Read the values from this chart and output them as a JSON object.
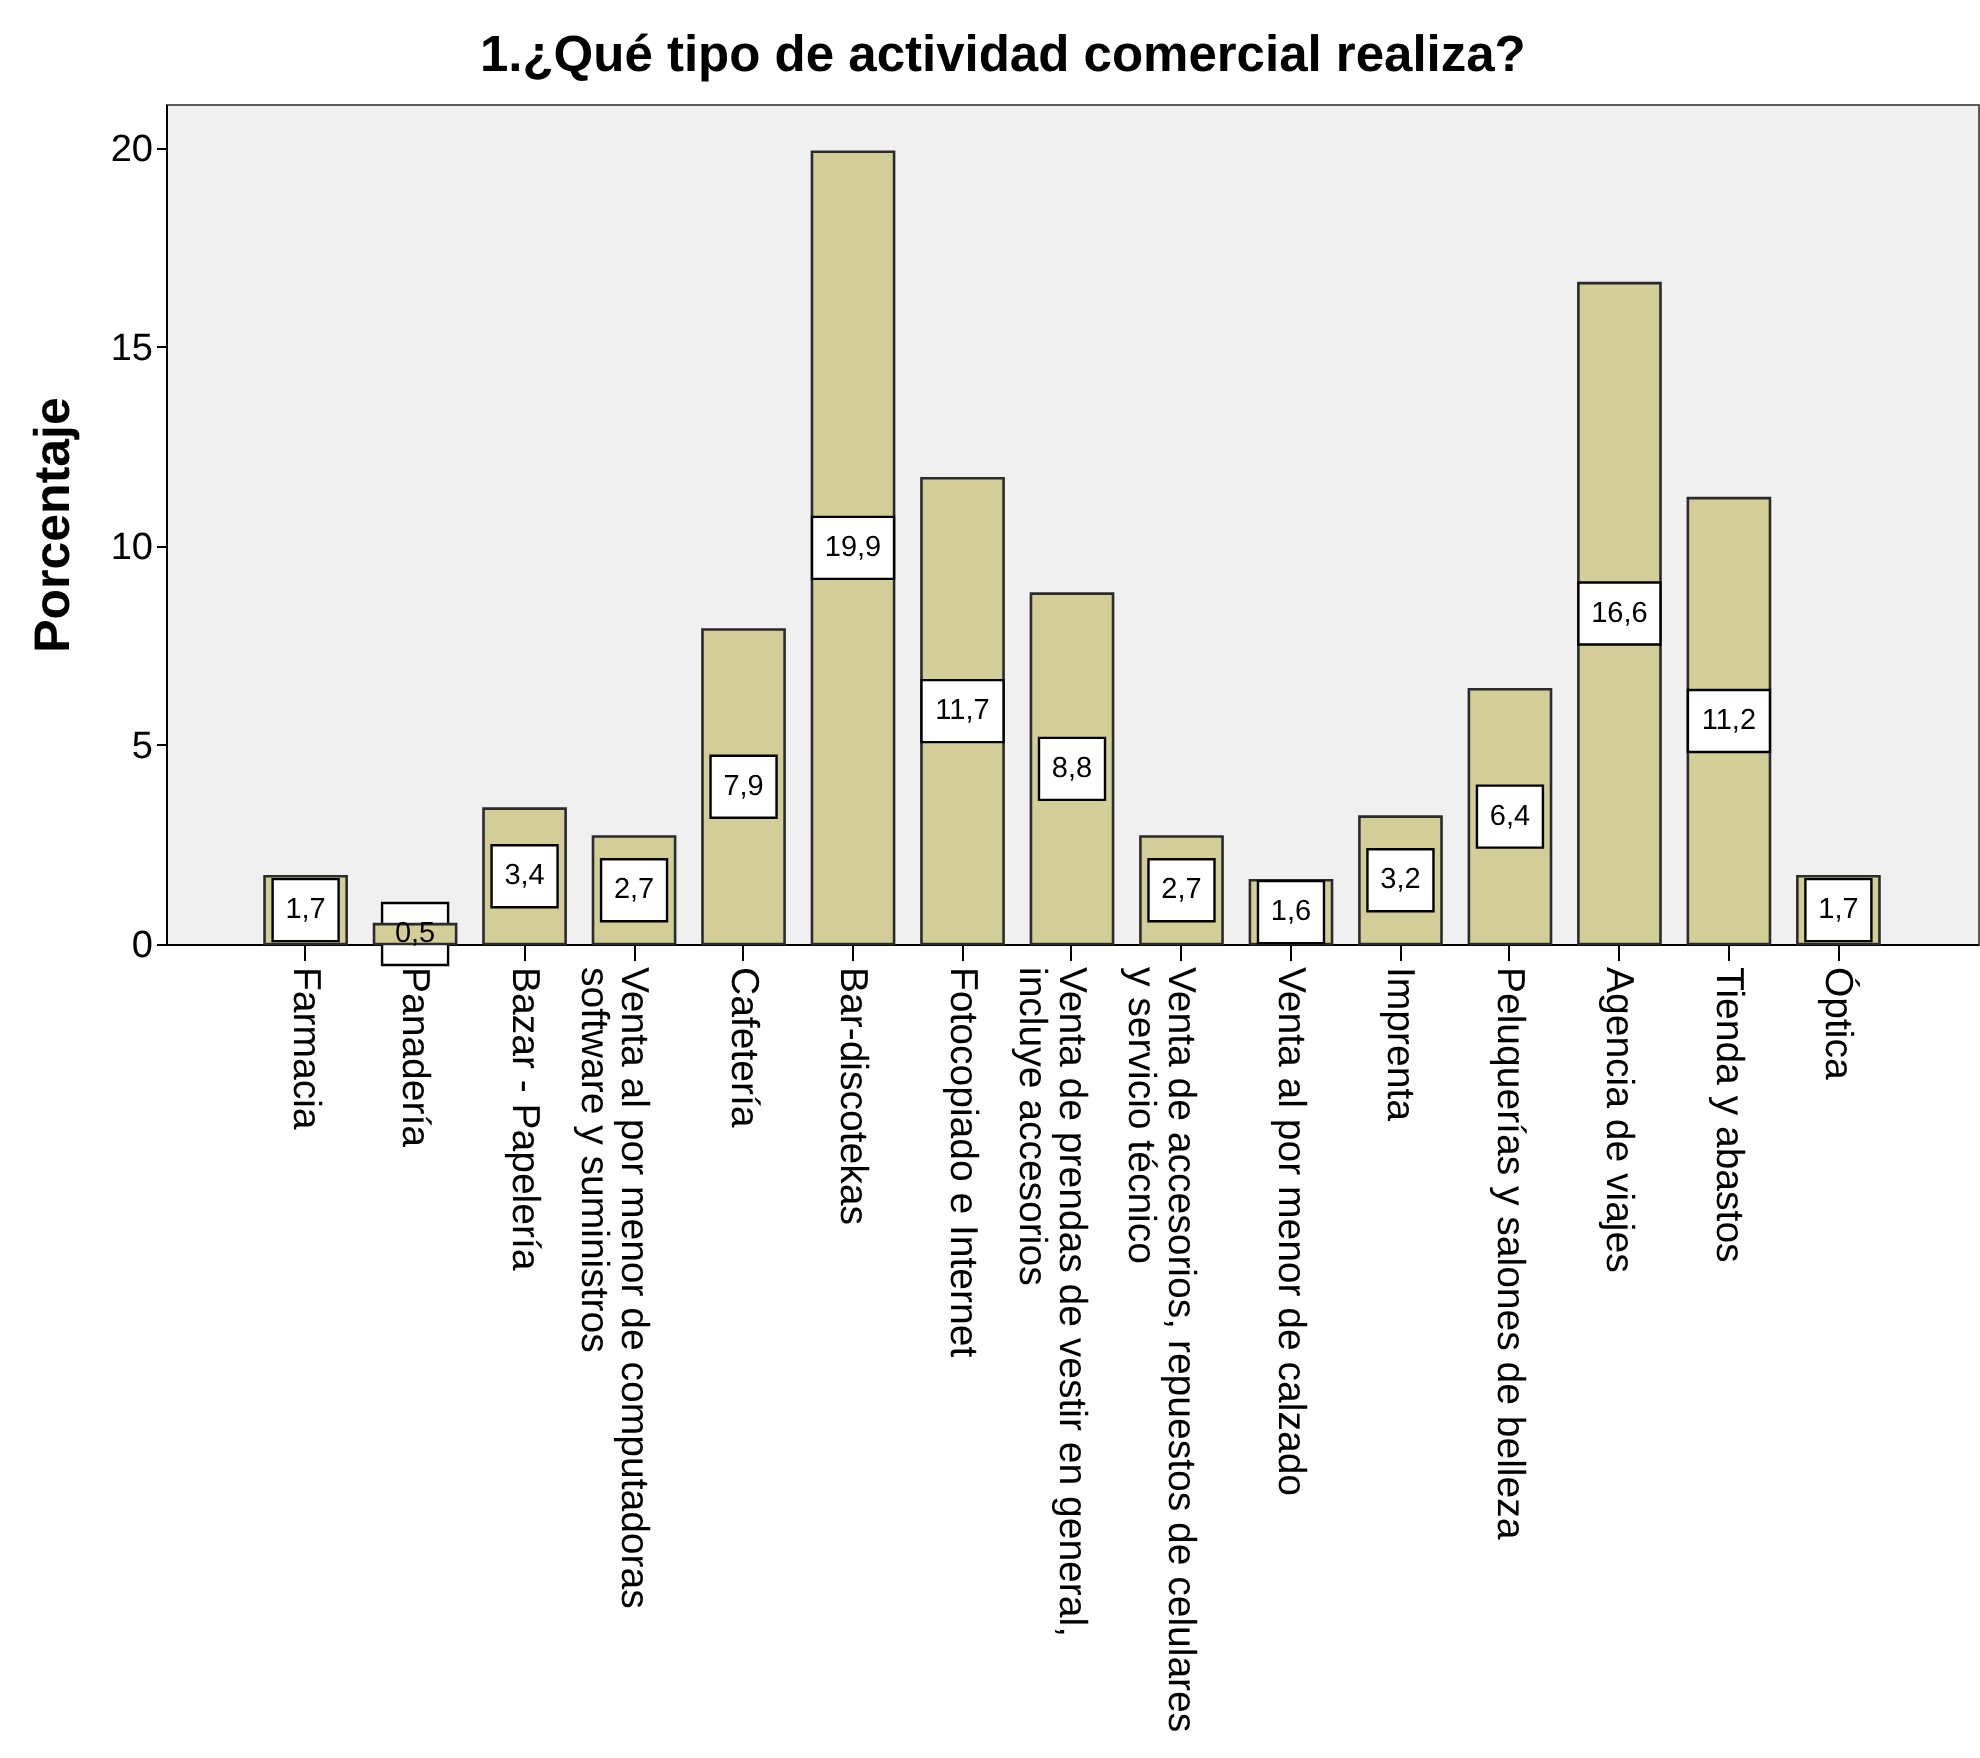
{
  "chart_data": {
    "type": "bar",
    "title": "1.¿Qué tipo de actividad comercial realiza?",
    "ylabel": "Porcentaje",
    "categories": [
      "Farmacia",
      "Panadería",
      "Bazar - Papelería",
      "Venta al por menor de computadoras\nsoftware y suministros",
      "Cafetería",
      "Bar-discotekas",
      "Fotocopiado e Internet",
      "Venta de prendas de vestir en general,\nincluye accesorios",
      "Venta de accesorios, repuestos de celulares\ny servicio técnico",
      "Venta al por menor de calzado",
      "Imprenta",
      "Peluquerías y salones de belleza",
      "Agencia de viajes",
      "Tienda y abastos",
      "Óptica"
    ],
    "values": [
      1.7,
      0.5,
      3.4,
      2.7,
      7.9,
      19.9,
      11.7,
      8.8,
      2.7,
      1.6,
      3.2,
      6.4,
      16.6,
      11.2,
      1.7
    ],
    "value_labels": [
      "1,7",
      "0,5",
      "3,4",
      "2,7",
      "7,9",
      "19,9",
      "11,7",
      "8,8",
      "2,7",
      "1,6",
      "3,2",
      "6,4",
      "16,6",
      "11,2",
      "1,7"
    ],
    "color": "#d3ce97",
    "ylim": [
      0,
      21.1
    ],
    "yticks": [
      0,
      5,
      10,
      15,
      20
    ]
  }
}
